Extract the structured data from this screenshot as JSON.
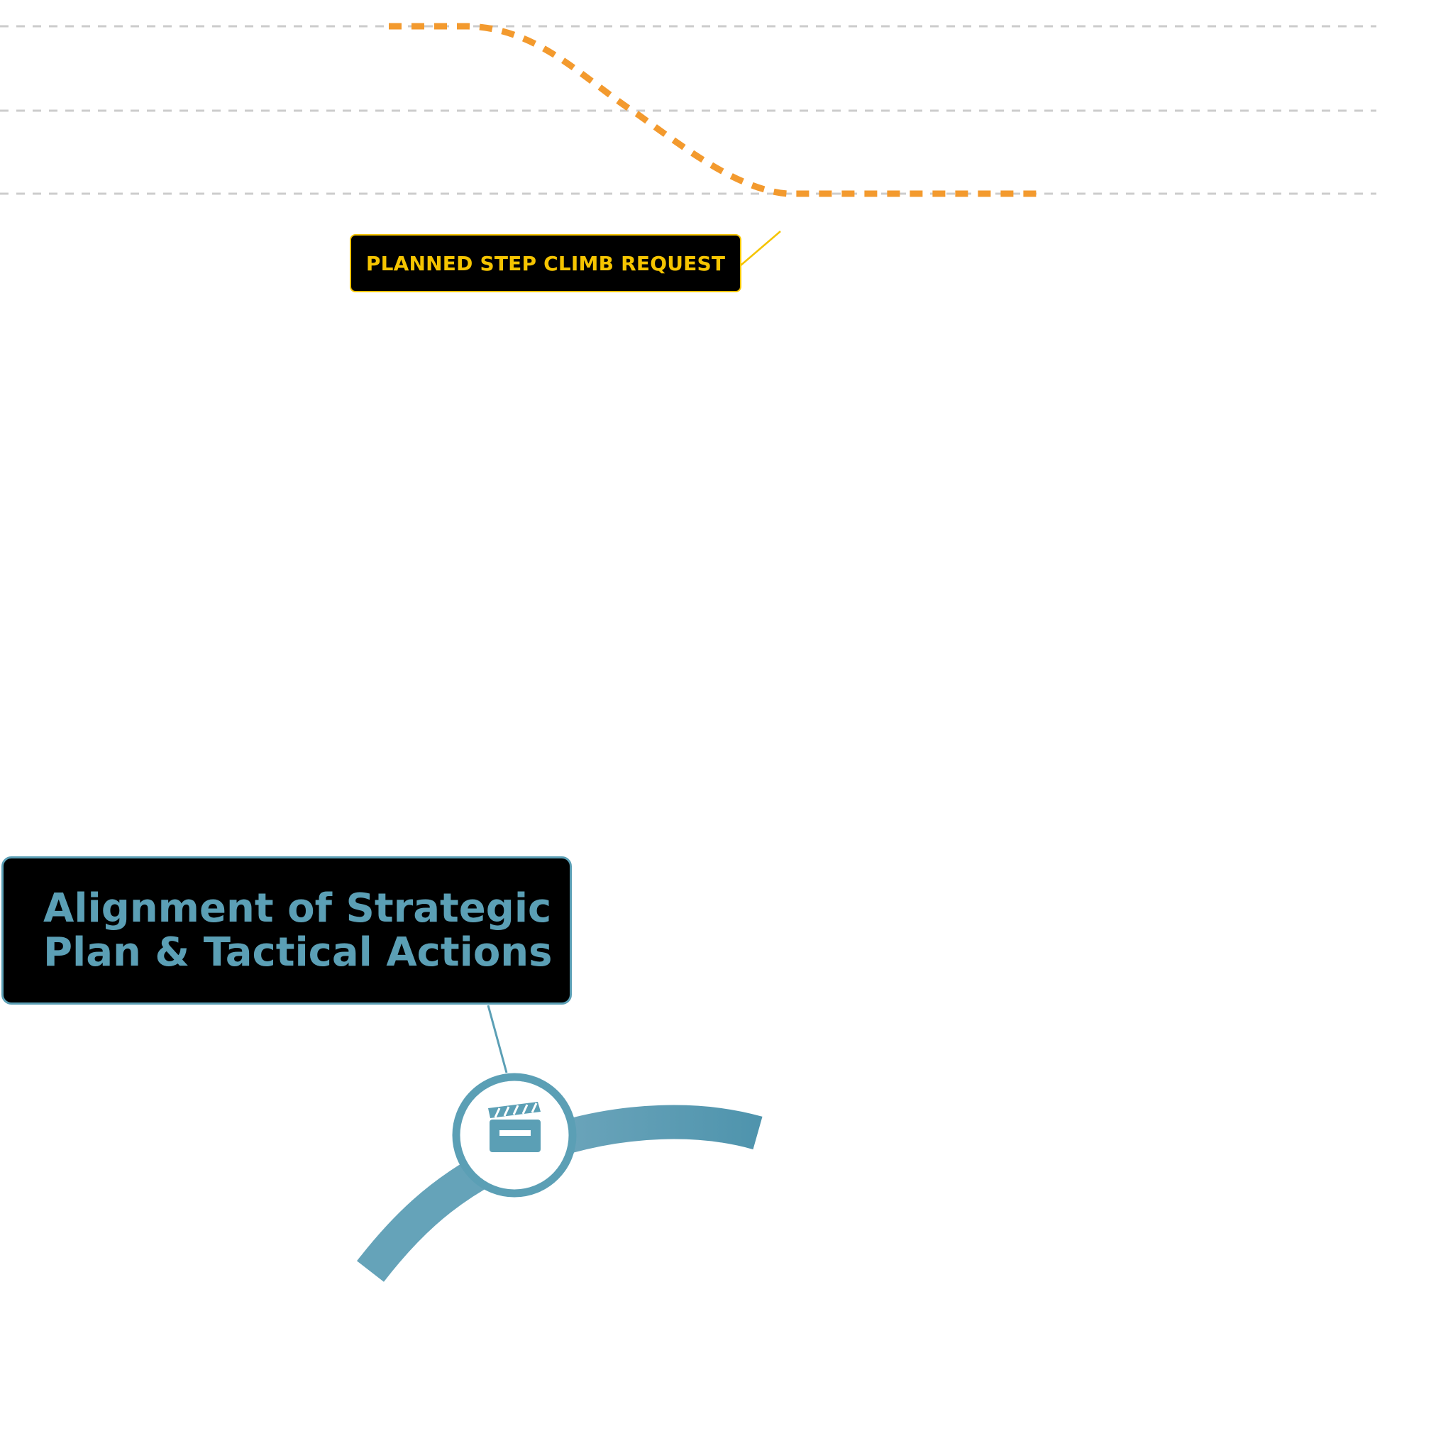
{
  "callouts": {
    "step_climb": {
      "label": "PLANNED STEP CLIMB REQUEST"
    },
    "alignment": {
      "title_line1": "Alignment of Strategic",
      "title_line2": "Plan & Tactical Actions"
    }
  },
  "icons": {
    "node_icon": "clapperboard-icon"
  },
  "colors": {
    "flight_path": "#f39a2e",
    "gridline": "#cccccc",
    "step_climb_accent": "#f5c400",
    "alignment_accent": "#5b9fb5",
    "callout_background": "#000000"
  }
}
